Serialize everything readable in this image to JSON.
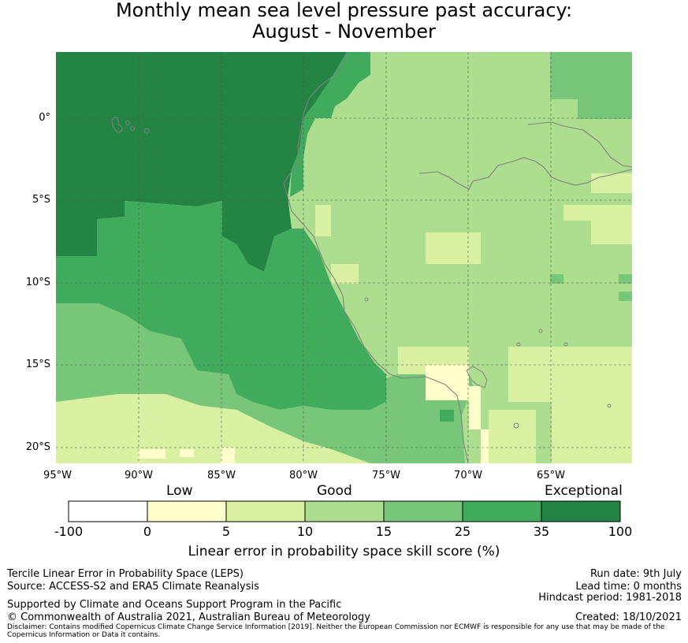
{
  "title": {
    "line1": "Monthly mean sea level pressure past accuracy:",
    "line2": "August - November"
  },
  "axes": {
    "lat_labels": [
      "0°",
      "5°S",
      "10°S",
      "15°S",
      "20°S"
    ],
    "lon_labels": [
      "95°W",
      "90°W",
      "85°W",
      "80°W",
      "75°W",
      "70°W",
      "65°W"
    ]
  },
  "colorbar": {
    "category_labels": [
      "Low",
      "Good",
      "Exceptional"
    ],
    "ticks": [
      "-100",
      "0",
      "5",
      "10",
      "15",
      "25",
      "35",
      "100"
    ],
    "colors": [
      "#ffffff",
      "#ffffcc",
      "#d9f0a3",
      "#addd8e",
      "#78c679",
      "#41ab5d",
      "#238443"
    ],
    "title": "Linear error in probability space skill score (%)"
  },
  "footer": {
    "left1": "Tercile Linear Error in Probability Space (LEPS)",
    "left2": "Source: ACCESS-S2 and ERA5 Climate Reanalysis",
    "left3": "Supported by Climate and Oceans Support Program in the Pacific",
    "left4": "© Commonwealth of Australia 2021, Australian Bureau of Meteorology",
    "disclaimer1": "Disclaimer: Contains modified Copernicus Climate Change Service Information [2019]. Neither the European Commission nor ECMWF is responsible for any use that may be made of the",
    "disclaimer2": "Copernicus Information or Data it contains.",
    "run_date": "Run date: 9th July",
    "lead_time": "Lead time: 0 months",
    "hindcast": "Hindcast period: 1981-2018",
    "created": "Created: 18/10/2021"
  }
}
